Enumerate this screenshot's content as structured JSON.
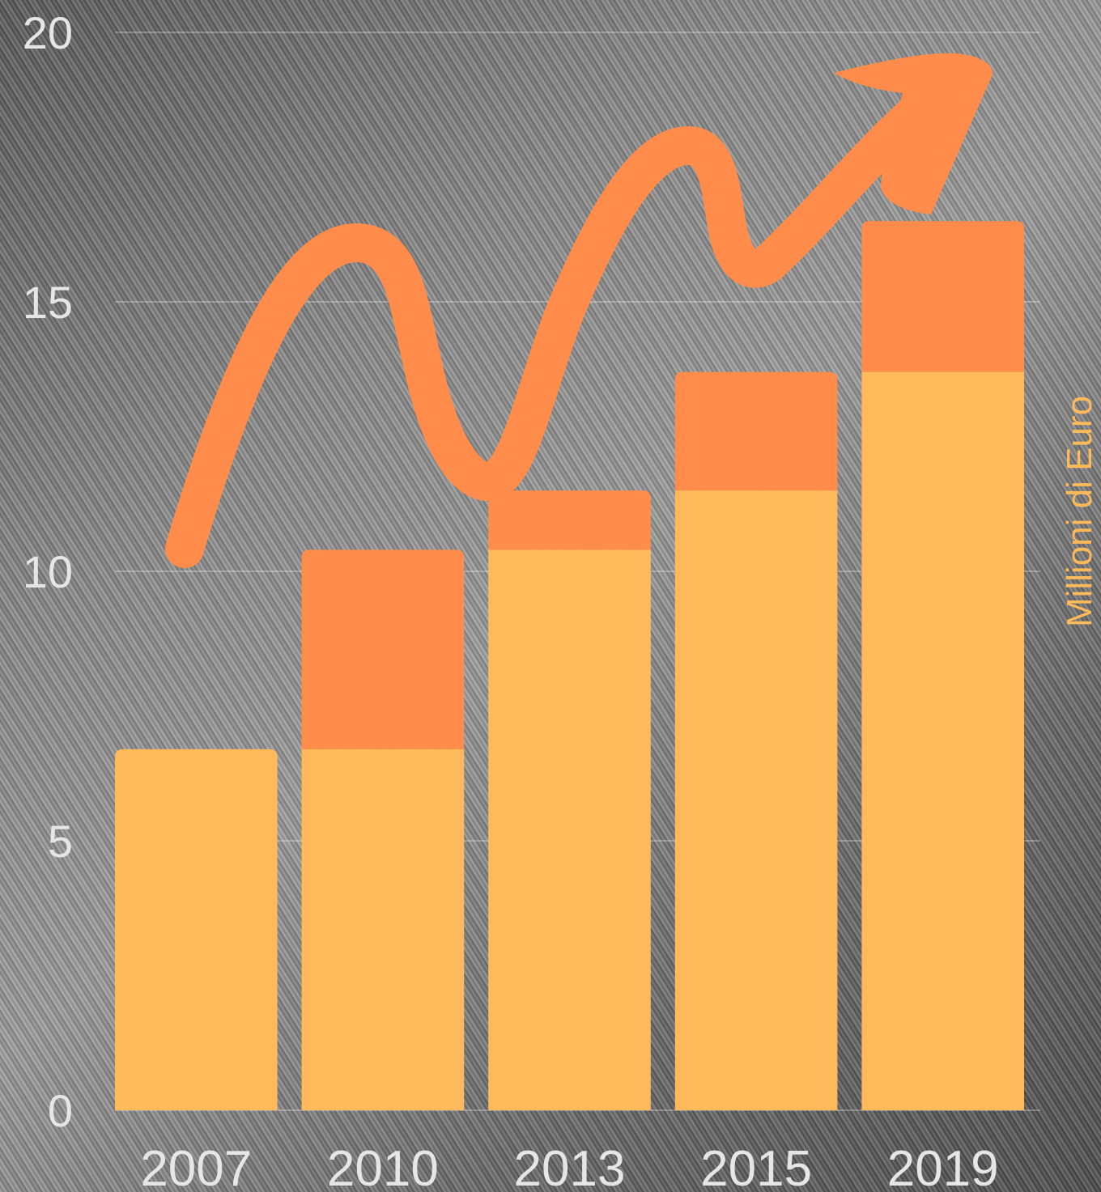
{
  "chart_data": {
    "type": "bar",
    "stacked": true,
    "categories": [
      "2007",
      "2010",
      "2013",
      "2015",
      "2019"
    ],
    "series": [
      {
        "values": [
          6.7,
          6.7,
          10.4,
          11.5,
          13.7
        ]
      },
      {
        "values": [
          0,
          3.7,
          1.1,
          2.2,
          2.8
        ]
      }
    ],
    "yticks": [
      "0",
      "5",
      "10",
      "15",
      "20"
    ],
    "ylim": [
      0,
      20
    ],
    "ylabel": "Millioni di Euro",
    "grid": true,
    "annotation": "trend-arrow"
  },
  "colors": {
    "base_series": "#fdb95a",
    "top_series": "#ff8c4a",
    "arrow": "#ff8c4a",
    "ylabel": "#fdb95a",
    "text": "#e6e6e6"
  }
}
